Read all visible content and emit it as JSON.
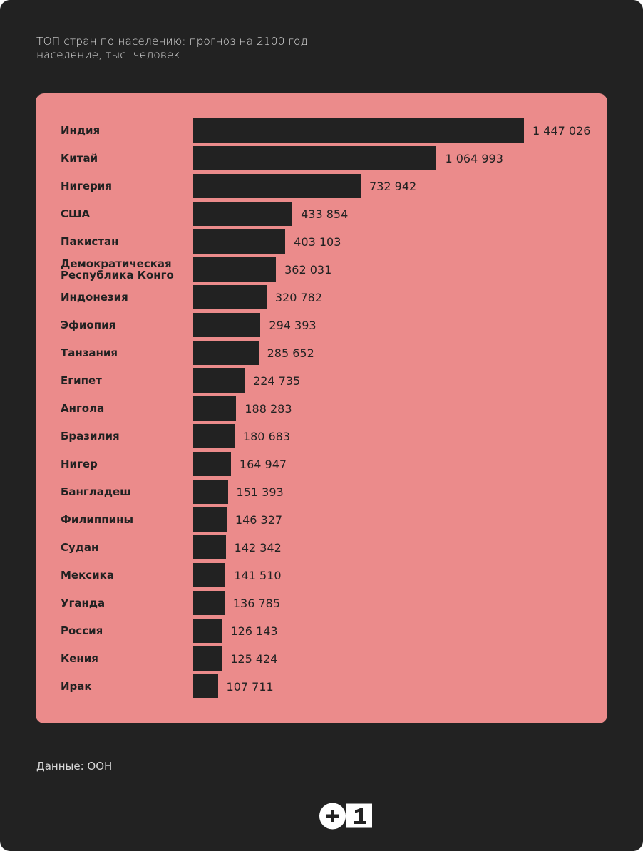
{
  "header": {
    "title": "ТОП стран по населению: прогноз на 2100 год",
    "subtitle": "население, тыс. человек"
  },
  "chart_data": {
    "type": "bar",
    "orientation": "horizontal",
    "title": "ТОП стран по населению: прогноз на 2100 год",
    "ylabel": "",
    "xlabel": "население, тыс. человек",
    "categories": [
      "Индия",
      "Китай",
      "Нигерия",
      "США",
      "Пакистан",
      "Демократическая Республика Конго",
      "Индонезия",
      "Эфиопия",
      "Танзания",
      "Египет",
      "Ангола",
      "Бразилия",
      "Нигер",
      "Бангладеш",
      "Филиппины",
      "Судан",
      "Мексика",
      "Уганда",
      "Россия",
      "Кения",
      "Ирак"
    ],
    "values": [
      1447026,
      1064993,
      732942,
      433854,
      403103,
      362031,
      320782,
      294393,
      285652,
      224735,
      188283,
      180683,
      164947,
      151393,
      146327,
      142342,
      141510,
      136785,
      126143,
      125424,
      107711
    ],
    "value_labels": [
      "1 447 026",
      "1 064 993",
      "732 942",
      "433 854",
      "403 103",
      "362 031",
      "320 782",
      "294 393",
      "285 652",
      "224 735",
      "188 283",
      "180 683",
      "164 947",
      "151 393",
      "146 327",
      "142 342",
      "141 510",
      "136 785",
      "126 143",
      "125 424",
      "107 711"
    ],
    "grid": false,
    "bar_color": "#222222",
    "background_color": "#eb8b8b"
  },
  "footer": {
    "source": "Данные: ООН",
    "logo_text": "+1"
  }
}
